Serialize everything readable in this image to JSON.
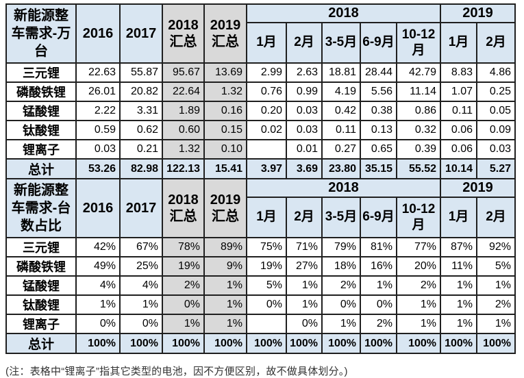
{
  "colors": {
    "header_blue": "#d9e6f2",
    "summary_gray": "#d9d9d9",
    "grid_border": "#1f1f1f",
    "cell_white": "#ffffff"
  },
  "table": {
    "sections": [
      {
        "corner_label": "新能源整车需求-万台",
        "summary_headers": [
          "2016",
          "2017",
          "2018汇总",
          "2019汇总"
        ],
        "year_groups": [
          {
            "label": "2018",
            "months": [
              "1月",
              "2月",
              "3-5月",
              "6-9月",
              "10-12月"
            ]
          },
          {
            "label": "2019",
            "months": [
              "1月",
              "2月"
            ]
          }
        ],
        "rows": [
          {
            "label": "三元锂",
            "total": false,
            "values": [
              "22.63",
              "55.87",
              "95.67",
              "13.69",
              "2.99",
              "2.63",
              "18.81",
              "28.44",
              "42.79",
              "8.83",
              "4.86"
            ]
          },
          {
            "label": "磷酸铁锂",
            "total": false,
            "values": [
              "26.01",
              "20.82",
              "22.64",
              "1.32",
              "0.76",
              "0.99",
              "4.19",
              "5.56",
              "11.14",
              "1.07",
              "0.25"
            ]
          },
          {
            "label": "锰酸锂",
            "total": false,
            "values": [
              "2.22",
              "3.31",
              "1.89",
              "0.16",
              "0.20",
              "0.03",
              "0.42",
              "0.38",
              "0.86",
              "0.11",
              "0.05"
            ]
          },
          {
            "label": "钛酸锂",
            "total": false,
            "values": [
              "0.59",
              "0.62",
              "0.60",
              "0.15",
              "0.02",
              "0.03",
              "0.11",
              "0.13",
              "0.32",
              "0.06",
              "0.09"
            ]
          },
          {
            "label": "锂离子",
            "total": false,
            "values": [
              "0.03",
              "0.21",
              "1.32",
              "0.10",
              "",
              "0.01",
              "0.27",
              "0.65",
              "0.39",
              "0.06",
              "0.03"
            ]
          },
          {
            "label": "总计",
            "total": true,
            "values": [
              "53.26",
              "82.98",
              "122.13",
              "15.41",
              "3.97",
              "3.69",
              "23.80",
              "35.15",
              "55.52",
              "10.14",
              "5.27"
            ]
          }
        ]
      },
      {
        "corner_label": "新能源整车需求-台数占比",
        "summary_headers": [
          "2016",
          "2017",
          "2018汇总",
          "2019汇总"
        ],
        "year_groups": [
          {
            "label": "2018",
            "months": [
              "1月",
              "2月",
              "3-5月",
              "6-9月",
              "10-12月"
            ]
          },
          {
            "label": "2019",
            "months": [
              "1月",
              "2月"
            ]
          }
        ],
        "rows": [
          {
            "label": "三元锂",
            "total": false,
            "values": [
              "42%",
              "67%",
              "78%",
              "89%",
              "75%",
              "71%",
              "79%",
              "81%",
              "77%",
              "87%",
              "92%"
            ]
          },
          {
            "label": "磷酸铁锂",
            "total": false,
            "values": [
              "49%",
              "25%",
              "19%",
              "9%",
              "19%",
              "27%",
              "18%",
              "16%",
              "20%",
              "11%",
              "5%"
            ]
          },
          {
            "label": "锰酸锂",
            "total": false,
            "values": [
              "4%",
              "4%",
              "2%",
              "1%",
              "5%",
              "1%",
              "2%",
              "1%",
              "2%",
              "1%",
              "1%"
            ]
          },
          {
            "label": "钛酸锂",
            "total": false,
            "values": [
              "1%",
              "1%",
              "0%",
              "1%",
              "0%",
              "1%",
              "0%",
              "0%",
              "1%",
              "1%",
              "2%"
            ]
          },
          {
            "label": "锂离子",
            "total": false,
            "values": [
              "0%",
              "0%",
              "1%",
              "1%",
              "",
              "0%",
              "1%",
              "2%",
              "1%",
              "1%",
              "1%"
            ]
          },
          {
            "label": "总计",
            "total": true,
            "values": [
              "100%",
              "100%",
              "100%",
              "100%",
              "100%",
              "100%",
              "100%",
              "100%",
              "100%",
              "100%",
              "100%"
            ]
          }
        ]
      }
    ]
  },
  "note": "(注：表格中“锂离子”指其它类型的电池，因不方便区别，故不做具体划分。)"
}
